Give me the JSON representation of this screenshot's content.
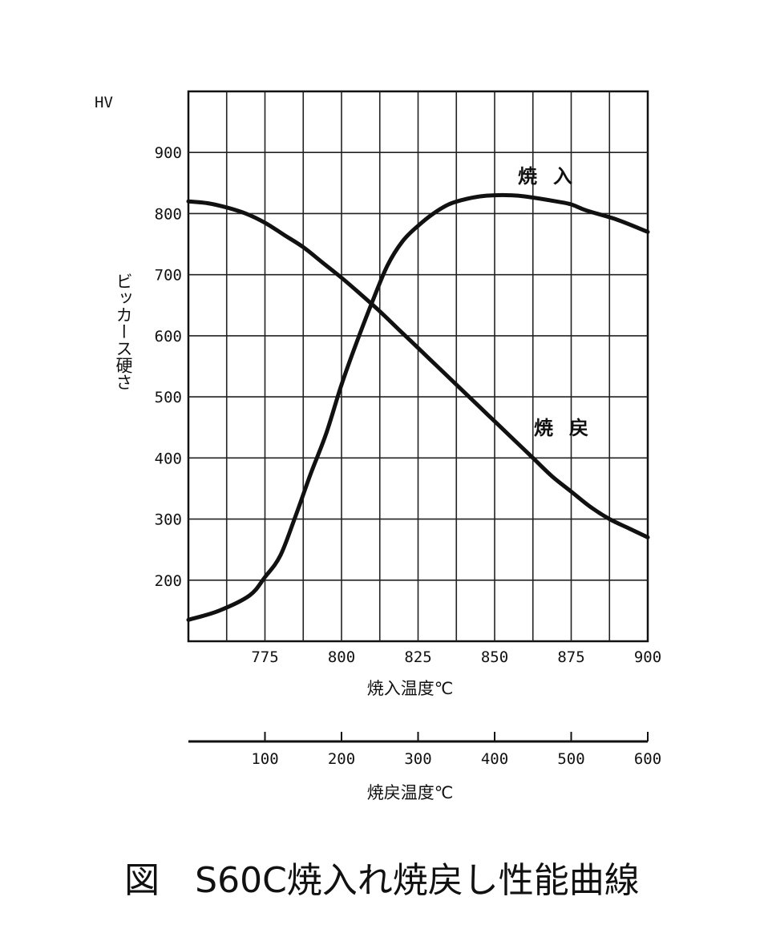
{
  "caption": "図　S60C焼入れ焼戻し性能曲線",
  "chart_data": {
    "type": "line",
    "y_unit": "HV",
    "ylabel": "ビッカース硬さ",
    "ylim": [
      100,
      1000
    ],
    "y_ticks": [
      200,
      300,
      400,
      500,
      600,
      700,
      800,
      900
    ],
    "xlabel": "焼入温度℃",
    "xlim": [
      750,
      900
    ],
    "x_ticks": [
      775,
      800,
      825,
      850,
      875,
      900
    ],
    "x2label": "焼戻温度℃",
    "x2lim": [
      0,
      600
    ],
    "x2_ticks": [
      100,
      200,
      300,
      400,
      500,
      600
    ],
    "grid": true,
    "series": [
      {
        "name": "焼入",
        "axis": "quench",
        "x": [
          750,
          760,
          770,
          775,
          780,
          785,
          790,
          795,
          800,
          805,
          810,
          815,
          820,
          825,
          830,
          835,
          840,
          845,
          850,
          855,
          860,
          870,
          875,
          880,
          890,
          900
        ],
        "y": [
          135,
          150,
          175,
          205,
          240,
          305,
          375,
          440,
          520,
          590,
          655,
          715,
          755,
          780,
          800,
          815,
          823,
          828,
          830,
          830,
          828,
          820,
          815,
          805,
          790,
          770
        ]
      },
      {
        "name": "焼戻",
        "axis": "temper",
        "x": [
          0,
          25,
          50,
          75,
          100,
          125,
          150,
          175,
          200,
          225,
          250,
          275,
          300,
          325,
          350,
          375,
          400,
          425,
          450,
          475,
          500,
          525,
          550,
          575,
          600
        ],
        "y": [
          820,
          817,
          810,
          800,
          785,
          765,
          745,
          720,
          695,
          668,
          640,
          610,
          580,
          550,
          520,
          490,
          460,
          430,
          400,
          370,
          345,
          320,
          300,
          285,
          270
        ]
      }
    ]
  }
}
